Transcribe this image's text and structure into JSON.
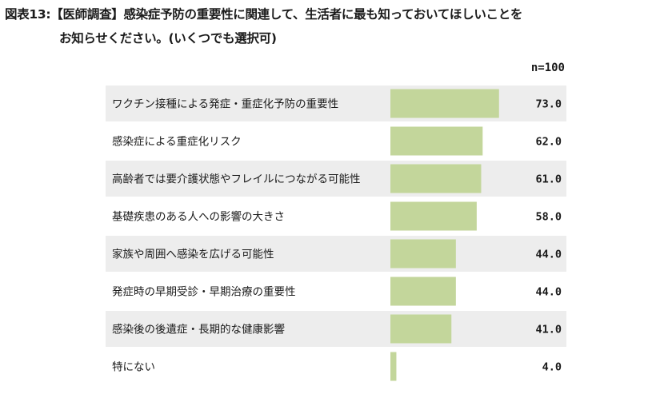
{
  "title_line1": "図表13:【医師調査】感染症予防の重要性に関連して、生活者に最も知っておいてほしいことを",
  "title_line2": "お知らせください。(いくつでも選択可)",
  "n_label": "n=100",
  "colors": {
    "bar": "#c3d69b",
    "row_shade": "#ededed",
    "text": "#1a1a1a"
  },
  "chart_data": {
    "type": "bar",
    "orientation": "horizontal",
    "categories": [
      "ワクチン接種による発症・重症化予防の重要性",
      "感染症による重症化リスク",
      "高齢者では要介護状態やフレイルにつながる可能性",
      "基礎疾患のある人への影響の大きさ",
      "家族や周囲へ感染を広げる可能性",
      "発症時の早期受診・早期治療の重要性",
      "感染後の後遺症・長期的な健康影響",
      "特にない"
    ],
    "values": [
      73.0,
      62.0,
      61.0,
      58.0,
      44.0,
      44.0,
      41.0,
      4.0
    ],
    "value_labels": [
      "73.0",
      "62.0",
      "61.0",
      "58.0",
      "44.0",
      "44.0",
      "41.0",
      "4.0"
    ],
    "xlim": [
      0,
      100
    ],
    "grid": false,
    "legend": "none"
  }
}
